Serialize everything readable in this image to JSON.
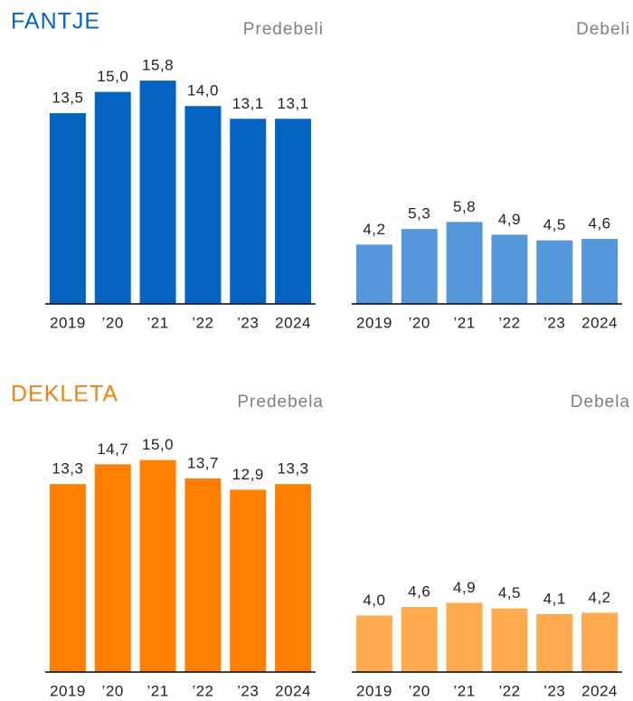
{
  "headings": [
    "FANTJE",
    "DEKLETA"
  ],
  "chart_data": [
    {
      "type": "bar",
      "title": "Predebeli",
      "color": "#0563c1",
      "categories": [
        "2019",
        "’20",
        "’21",
        "’22",
        "’23",
        "2024"
      ],
      "values": [
        13.5,
        15.0,
        15.8,
        14.0,
        13.1,
        13.1
      ],
      "value_labels": [
        "13,5",
        "15,0",
        "15,8",
        "14,0",
        "13,1",
        "13,1"
      ],
      "ylim": [
        0,
        16
      ]
    },
    {
      "type": "bar",
      "title": "Debeli",
      "color": "#5597db",
      "categories": [
        "2019",
        "’20",
        "’21",
        "’22",
        "’23",
        "2024"
      ],
      "values": [
        4.2,
        5.3,
        5.8,
        4.9,
        4.5,
        4.6
      ],
      "value_labels": [
        "4,2",
        "5,3",
        "5,8",
        "4,9",
        "4,5",
        "4,6"
      ],
      "ylim": [
        0,
        16
      ]
    },
    {
      "type": "bar",
      "title": "Predebela",
      "color": "#ff8000",
      "categories": [
        "2019",
        "’20",
        "’21",
        "’22",
        "’23",
        "2024"
      ],
      "values": [
        13.3,
        14.7,
        15.0,
        13.7,
        12.9,
        13.3
      ],
      "value_labels": [
        "13,3",
        "14,7",
        "15,0",
        "13,7",
        "12,9",
        "13,3"
      ],
      "ylim": [
        0,
        16
      ]
    },
    {
      "type": "bar",
      "title": "Debela",
      "color": "#ffaa4f",
      "categories": [
        "2019",
        "’20",
        "’21",
        "’22",
        "’23",
        "2024"
      ],
      "values": [
        4.0,
        4.6,
        4.9,
        4.5,
        4.1,
        4.2
      ],
      "value_labels": [
        "4,0",
        "4,6",
        "4,9",
        "4,5",
        "4,1",
        "4,2"
      ],
      "ylim": [
        0,
        16
      ]
    }
  ]
}
